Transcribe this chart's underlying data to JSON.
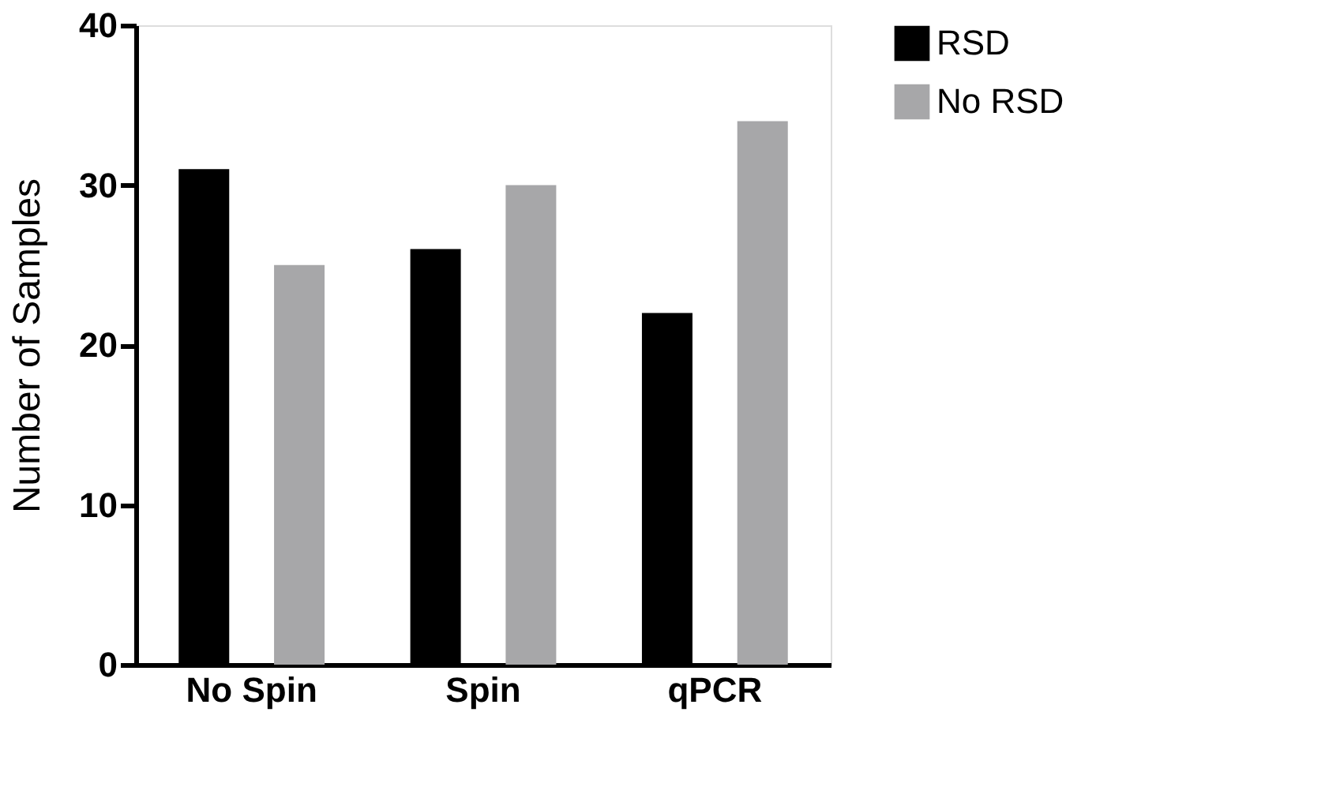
{
  "chart_data": {
    "type": "bar",
    "ylabel": "Number of Samples",
    "categories": [
      "No Spin",
      "Spin",
      "qPCR"
    ],
    "series": [
      {
        "name": "RSD",
        "color": "#000000",
        "values": [
          31,
          26,
          22
        ]
      },
      {
        "name": "No RSD",
        "color": "#a7a7a9",
        "values": [
          25,
          30,
          34
        ]
      }
    ],
    "ylim": [
      0,
      40
    ],
    "yticks": [
      0,
      10,
      20,
      30,
      40
    ],
    "grid": false,
    "legend": "top right"
  }
}
